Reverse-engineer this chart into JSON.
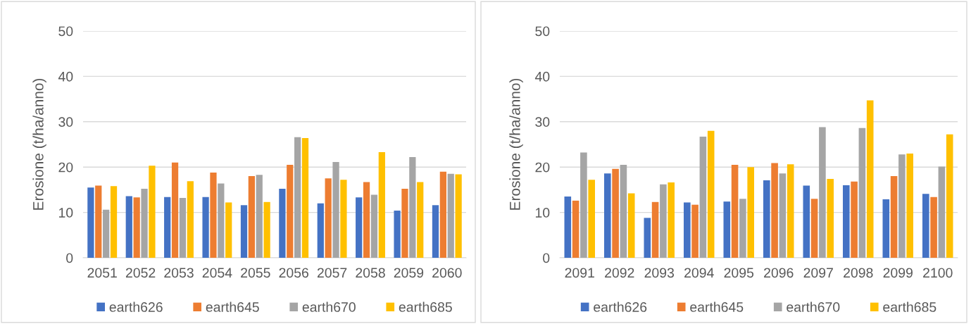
{
  "chart_data": [
    {
      "type": "bar",
      "ylabel": "Erosione (t/ha/anno)",
      "categories": [
        "2051",
        "2052",
        "2053",
        "2054",
        "2055",
        "2056",
        "2057",
        "2058",
        "2059",
        "2060"
      ],
      "ylim": [
        0,
        50
      ],
      "yticks": [
        0,
        10,
        20,
        30,
        40,
        50
      ],
      "grid": "y",
      "legend": "bottom",
      "series": [
        {
          "name": "earth626",
          "color": "#4472c4",
          "values": [
            15.5,
            13.6,
            13.4,
            13.4,
            11.6,
            15.2,
            12.0,
            13.3,
            10.4,
            11.6
          ]
        },
        {
          "name": "earth645",
          "color": "#ed7d31",
          "values": [
            15.9,
            13.3,
            21.0,
            18.8,
            18.0,
            20.5,
            17.5,
            16.7,
            15.2,
            19.0
          ]
        },
        {
          "name": "earth670",
          "color": "#a5a5a5",
          "values": [
            10.6,
            15.2,
            13.2,
            16.4,
            18.3,
            26.6,
            21.1,
            13.9,
            22.2,
            18.5
          ]
        },
        {
          "name": "earth685",
          "color": "#ffc000",
          "values": [
            15.8,
            20.3,
            16.9,
            12.2,
            12.3,
            26.4,
            17.2,
            23.3,
            16.7,
            18.4
          ]
        }
      ]
    },
    {
      "type": "bar",
      "ylabel": "Erosione (t/ha/anno)",
      "categories": [
        "2091",
        "2092",
        "2093",
        "2094",
        "2095",
        "2096",
        "2097",
        "2098",
        "2099",
        "2100"
      ],
      "ylim": [
        0,
        50
      ],
      "yticks": [
        0,
        10,
        20,
        30,
        40,
        50
      ],
      "grid": "y",
      "legend": "bottom",
      "series": [
        {
          "name": "earth626",
          "color": "#4472c4",
          "values": [
            13.5,
            18.6,
            8.8,
            12.2,
            12.4,
            17.1,
            15.9,
            16.0,
            12.9,
            14.1
          ]
        },
        {
          "name": "earth645",
          "color": "#ed7d31",
          "values": [
            12.6,
            19.6,
            12.3,
            11.7,
            20.5,
            20.9,
            13.0,
            16.8,
            18.0,
            13.4
          ]
        },
        {
          "name": "earth670",
          "color": "#a5a5a5",
          "values": [
            23.2,
            20.5,
            16.2,
            26.7,
            13.0,
            18.6,
            28.8,
            28.6,
            22.8,
            20.1
          ]
        },
        {
          "name": "earth685",
          "color": "#ffc000",
          "values": [
            17.2,
            14.2,
            16.6,
            28.0,
            20.0,
            20.6,
            17.4,
            34.7,
            23.0,
            27.2
          ]
        }
      ]
    }
  ]
}
